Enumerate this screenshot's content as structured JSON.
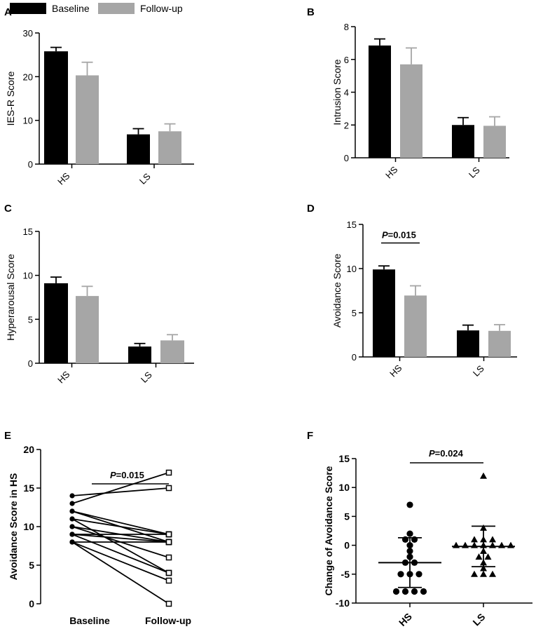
{
  "legend": {
    "baseline_label": "Baseline",
    "followup_label": "Follow-up",
    "baseline_color": "#000000",
    "followup_color": "#a6a6a6"
  },
  "panels": {
    "A": {
      "letter": "A"
    },
    "B": {
      "letter": "B"
    },
    "C": {
      "letter": "C"
    },
    "D": {
      "letter": "D"
    },
    "E": {
      "letter": "E"
    },
    "F": {
      "letter": "F"
    }
  },
  "chart_data": [
    {
      "panel": "A",
      "type": "bar",
      "ylabel": "IES-R Score",
      "ylim": [
        0,
        30
      ],
      "yticks": [
        0,
        10,
        20,
        30
      ],
      "categories": [
        "HS",
        "LS"
      ],
      "series": [
        {
          "name": "Baseline",
          "values": [
            25.8,
            6.8
          ],
          "errors": [
            0.9,
            1.3
          ]
        },
        {
          "name": "Follow-up",
          "values": [
            20.3,
            7.5
          ],
          "errors": [
            3.0,
            1.7
          ]
        }
      ]
    },
    {
      "panel": "B",
      "type": "bar",
      "ylabel": "Intrusion Score",
      "ylim": [
        0,
        8
      ],
      "yticks": [
        0,
        2,
        4,
        6,
        8
      ],
      "categories": [
        "HS",
        "LS"
      ],
      "series": [
        {
          "name": "Baseline",
          "values": [
            6.85,
            2.0
          ],
          "errors": [
            0.4,
            0.45
          ]
        },
        {
          "name": "Follow-up",
          "values": [
            5.7,
            1.95
          ],
          "errors": [
            1.0,
            0.55
          ]
        }
      ]
    },
    {
      "panel": "C",
      "type": "bar",
      "ylabel": "Hyperarousal Score",
      "ylim": [
        0,
        15
      ],
      "yticks": [
        0,
        5,
        10,
        15
      ],
      "categories": [
        "HS",
        "LS"
      ],
      "series": [
        {
          "name": "Baseline",
          "values": [
            9.1,
            1.9
          ],
          "errors": [
            0.7,
            0.35
          ]
        },
        {
          "name": "Follow-up",
          "values": [
            7.65,
            2.6
          ],
          "errors": [
            1.1,
            0.65
          ]
        }
      ]
    },
    {
      "panel": "D",
      "type": "bar",
      "ylabel": "Avoidance Score",
      "ylim": [
        0,
        15
      ],
      "yticks": [
        0,
        5,
        10,
        15
      ],
      "categories": [
        "HS",
        "LS"
      ],
      "p_label": "P",
      "p_value": "=0.015",
      "series": [
        {
          "name": "Baseline",
          "values": [
            9.9,
            3.0
          ],
          "errors": [
            0.4,
            0.6
          ]
        },
        {
          "name": "Follow-up",
          "values": [
            6.95,
            2.95
          ],
          "errors": [
            1.1,
            0.7
          ]
        }
      ]
    },
    {
      "panel": "E",
      "type": "line",
      "ylabel": "Avoidance Score in HS",
      "ylim": [
        0,
        20
      ],
      "yticks": [
        0,
        5,
        10,
        15,
        20
      ],
      "categories": [
        "Baseline",
        "Follow-up"
      ],
      "p_label": "P",
      "p_value": "=0.015",
      "pairs": [
        [
          14,
          15
        ],
        [
          13,
          17
        ],
        [
          12,
          9
        ],
        [
          11,
          9
        ],
        [
          10,
          8
        ],
        [
          10,
          6
        ],
        [
          9,
          8
        ],
        [
          9,
          9
        ],
        [
          8,
          3
        ],
        [
          8,
          0
        ],
        [
          11,
          4
        ],
        [
          8,
          8
        ],
        [
          9,
          4
        ],
        [
          12,
          8
        ]
      ]
    },
    {
      "panel": "F",
      "type": "scatter",
      "ylabel": "Change of Avoidance Score",
      "ylim": [
        -10,
        15
      ],
      "yticks": [
        -10,
        -5,
        0,
        5,
        10,
        15
      ],
      "categories": [
        "HS",
        "LS"
      ],
      "p_label": "P",
      "p_value": "=0.024",
      "groups": [
        {
          "name": "HS",
          "marker": "circle",
          "mean": -3.0,
          "sd": 4.3,
          "values": [
            7,
            2,
            1,
            1,
            0,
            -1,
            -2,
            -3,
            -3,
            -5,
            -5,
            -5,
            -8,
            -8,
            -8,
            -8
          ]
        },
        {
          "name": "LS",
          "marker": "triangle",
          "mean": -0.2,
          "sd": 3.5,
          "values": [
            12,
            3,
            1,
            1,
            1,
            0,
            0,
            0,
            0,
            0,
            0,
            0,
            -1,
            -2,
            -2,
            -3,
            -4,
            -5,
            -5,
            -5
          ]
        }
      ]
    }
  ]
}
